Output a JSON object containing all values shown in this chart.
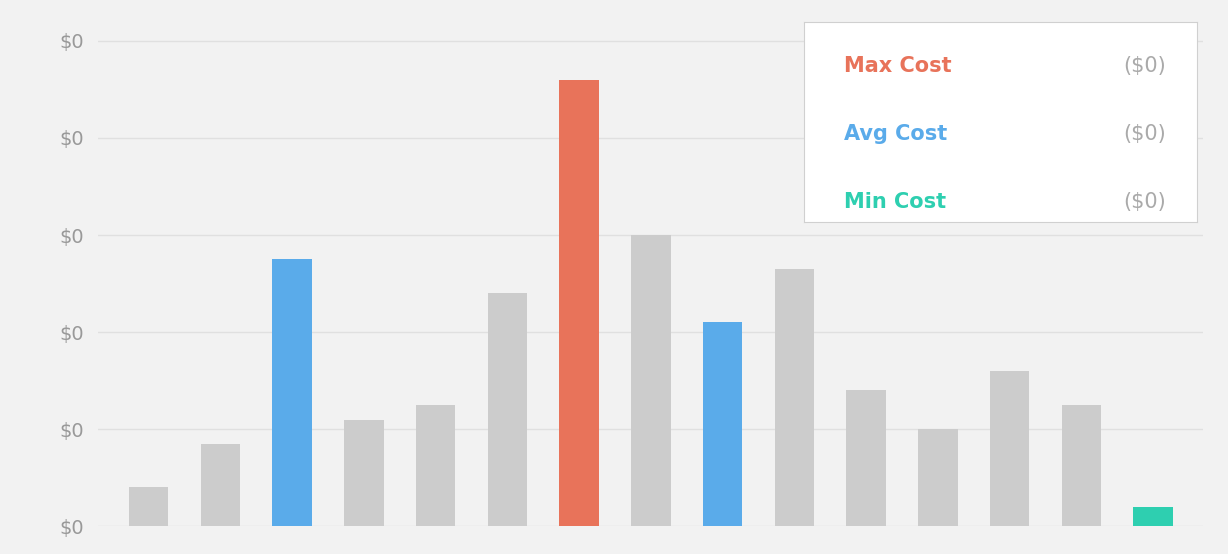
{
  "bar_heights": [
    0.08,
    0.17,
    0.55,
    0.22,
    0.25,
    0.48,
    0.92,
    0.6,
    0.42,
    0.53,
    0.28,
    0.2,
    0.32,
    0.25,
    0.04
  ],
  "bar_colors": [
    "#cccccc",
    "#cccccc",
    "#5aabea",
    "#cccccc",
    "#cccccc",
    "#cccccc",
    "#e8735a",
    "#cccccc",
    "#5aabea",
    "#cccccc",
    "#cccccc",
    "#cccccc",
    "#cccccc",
    "#cccccc",
    "#2ecfb0"
  ],
  "max_cost_color": "#e8735a",
  "avg_cost_color": "#5aabea",
  "min_cost_color": "#2ecfb0",
  "legend_value_color": "#aaaaaa",
  "ytick_color": "#999999",
  "background_color": "#f2f2f2",
  "plot_background": "#f2f2f2",
  "grid_color": "#e0e0e0",
  "legend_labels": [
    "Max Cost",
    "Avg Cost",
    "Min Cost"
  ],
  "legend_values": [
    "($0)",
    "($0)",
    "($0)"
  ],
  "bar_width": 0.55,
  "ylim": [
    0,
    1.05
  ],
  "figsize": [
    12.28,
    5.54
  ],
  "dpi": 100
}
